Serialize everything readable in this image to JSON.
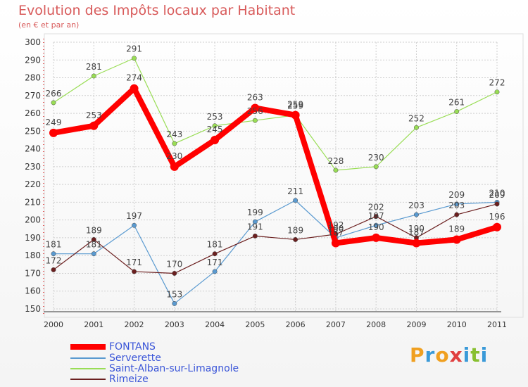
{
  "header": {
    "title": "Evolution des Impôts locaux par Habitant",
    "subtitle": "(en € et par an)"
  },
  "logo": {
    "letters": [
      "P",
      "r",
      "o",
      "x",
      "i",
      "t",
      "i"
    ],
    "colors": [
      "#f0a020",
      "#3a9ad8",
      "#f0a020",
      "#e04040",
      "#3a9ad8",
      "#88c030",
      "#3a9ad8"
    ]
  },
  "chart_data": {
    "type": "line",
    "title": "Evolution des Impôts locaux par Habitant",
    "subtitle": "(en € et par an)",
    "xlabel": "",
    "ylabel": "",
    "categories": [
      "2000",
      "2001",
      "2002",
      "2003",
      "2004",
      "2005",
      "2006",
      "2007",
      "2008",
      "2009",
      "2010",
      "2011"
    ],
    "ylim": [
      150,
      300
    ],
    "yticks": [
      150,
      160,
      170,
      180,
      190,
      200,
      210,
      220,
      230,
      240,
      250,
      260,
      270,
      280,
      290,
      300
    ],
    "grid": true,
    "legend_position": "bottom-left",
    "series": [
      {
        "name": "FONTANS",
        "color": "#ff0000",
        "width": 8,
        "marker": 6,
        "values": [
          249,
          253,
          274,
          230,
          245,
          263,
          259,
          187,
          190,
          187,
          189,
          196
        ]
      },
      {
        "name": "Serverette",
        "color": "#5a9ad0",
        "width": 1.2,
        "marker": 3.2,
        "values": [
          181,
          181,
          197,
          153,
          171,
          199,
          211,
          190,
          197,
          203,
          209,
          210
        ]
      },
      {
        "name": "Saint-Alban-sur-Limagnole",
        "color": "#99dd55",
        "width": 1.2,
        "marker": 3.2,
        "values": [
          266,
          281,
          291,
          243,
          253,
          256,
          259,
          228,
          230,
          252,
          261,
          272
        ]
      },
      {
        "name": "Rimeize",
        "color": "#6b1f1f",
        "width": 1.2,
        "marker": 3.2,
        "values": [
          172,
          189,
          171,
          170,
          181,
          191,
          189,
          192,
          202,
          190,
          203,
          209
        ]
      }
    ]
  }
}
